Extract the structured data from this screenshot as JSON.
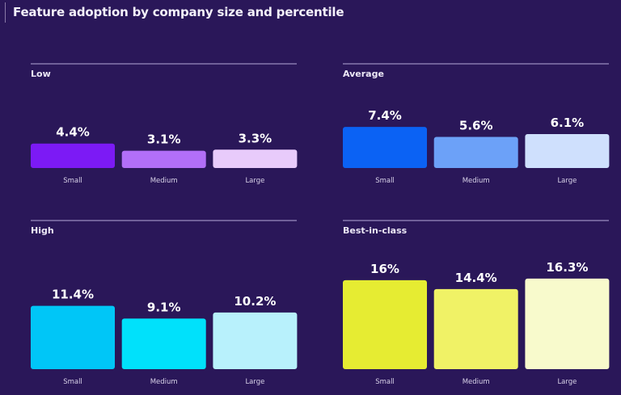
{
  "chart_data": [
    {
      "type": "bar",
      "title": "Low",
      "categories": [
        "Small",
        "Medium",
        "Large"
      ],
      "values": [
        4.4,
        3.1,
        3.3
      ],
      "labels": [
        "4.4%",
        "3.1%",
        "3.3%"
      ],
      "colors": [
        "#7c1af5",
        "#b26ff8",
        "#e8cbfb"
      ]
    },
    {
      "type": "bar",
      "title": "Average",
      "categories": [
        "Small",
        "Medium",
        "Large"
      ],
      "values": [
        7.4,
        5.6,
        6.1
      ],
      "labels": [
        "7.4%",
        "5.6%",
        "6.1%"
      ],
      "colors": [
        "#0b62f4",
        "#6ca1f8",
        "#cfe0fd"
      ]
    },
    {
      "type": "bar",
      "title": "High",
      "categories": [
        "Small",
        "Medium",
        "Large"
      ],
      "values": [
        11.4,
        9.1,
        10.2
      ],
      "labels": [
        "11.4%",
        "9.1%",
        "10.2%"
      ],
      "colors": [
        "#00c6f7",
        "#00e1fb",
        "#b8f1fc"
      ]
    },
    {
      "type": "bar",
      "title": "Best-in-class",
      "categories": [
        "Small",
        "Medium",
        "Large"
      ],
      "values": [
        16,
        14.4,
        16.3
      ],
      "labels": [
        "16%",
        "14.4%",
        "16.3%"
      ],
      "colors": [
        "#e6ec32",
        "#f0f266",
        "#f8facc"
      ]
    }
  ],
  "header": {
    "title": "Feature adoption by company size and percentile"
  },
  "colors": {
    "background": "#2a1759",
    "divider": "#9a8cc0"
  }
}
